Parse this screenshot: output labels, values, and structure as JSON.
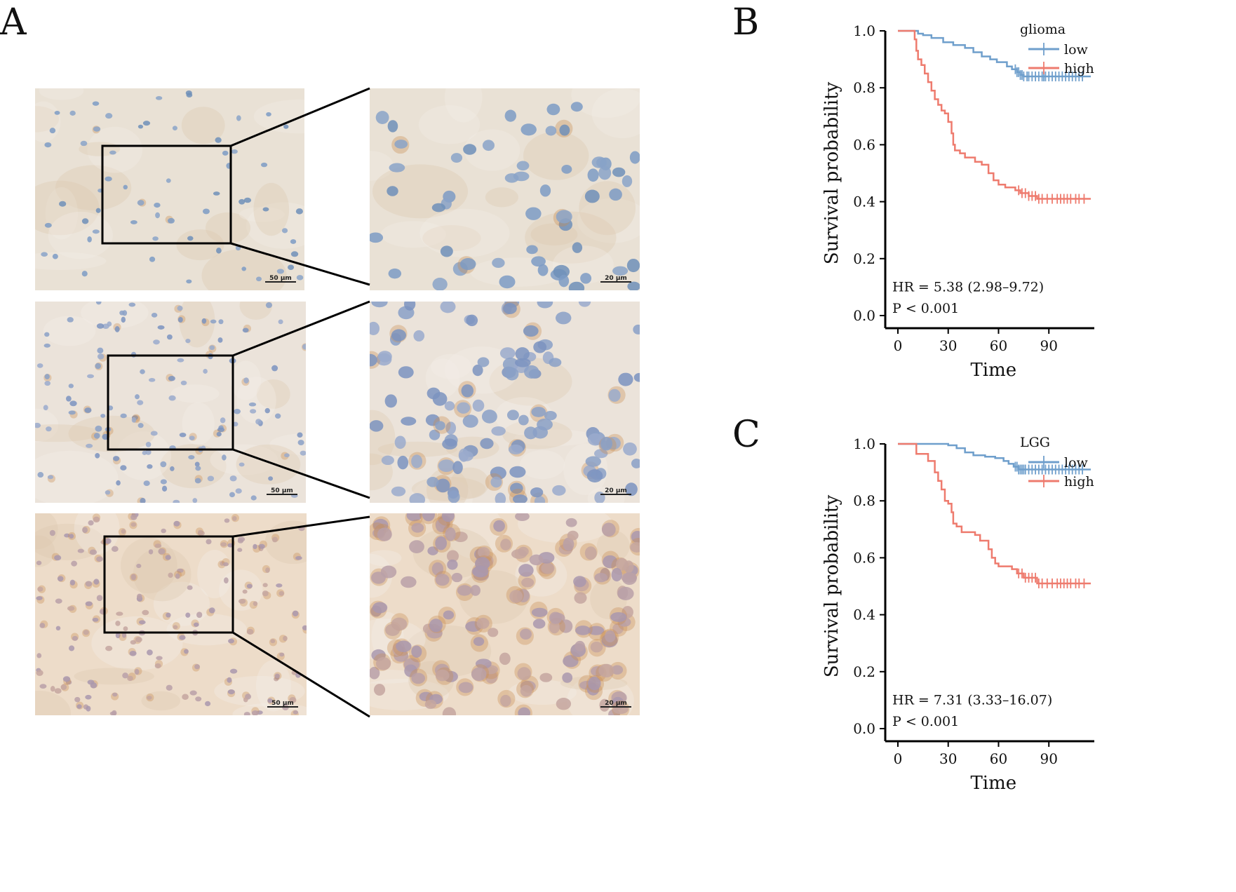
{
  "panels": {
    "a": {
      "letter": "A",
      "scale_left": "50 µm",
      "scale_right": "20 µm"
    },
    "b": {
      "letter": "B"
    },
    "c": {
      "letter": "C"
    }
  },
  "chart_data": [
    {
      "type": "line",
      "panel": "B",
      "xlabel": "Time",
      "ylabel": "Survival probability",
      "xlim": [
        0,
        115
      ],
      "ylim": [
        0,
        1.0
      ],
      "x_ticks": [
        0,
        30,
        60,
        90
      ],
      "y_ticks": [
        0.0,
        0.2,
        0.4,
        0.6,
        0.8,
        1.0
      ],
      "legend": {
        "title": "glioma",
        "position": "top-right"
      },
      "annotations": [
        "HR = 5.38 (2.98–9.72)",
        "P < 0.001"
      ],
      "series": [
        {
          "name": "low",
          "color": "#6f9fcc",
          "steps": [
            [
              0,
              1.0
            ],
            [
              12,
              0.99
            ],
            [
              15,
              0.985
            ],
            [
              20,
              0.975
            ],
            [
              27,
              0.96
            ],
            [
              33,
              0.95
            ],
            [
              40,
              0.94
            ],
            [
              45,
              0.925
            ],
            [
              50,
              0.91
            ],
            [
              55,
              0.9
            ],
            [
              59,
              0.89
            ],
            [
              65,
              0.875
            ],
            [
              68,
              0.865
            ],
            [
              71,
              0.855
            ],
            [
              73,
              0.845
            ],
            [
              75,
              0.84
            ],
            [
              115,
              0.84
            ]
          ],
          "censor_x": [
            70,
            71,
            72,
            73,
            74,
            75,
            77,
            78,
            80,
            82,
            84,
            86,
            87,
            88,
            90,
            92,
            94,
            96,
            98,
            100,
            102,
            104,
            106,
            108,
            110
          ]
        },
        {
          "name": "high",
          "color": "#ee7b6e",
          "steps": [
            [
              0,
              1.0
            ],
            [
              10,
              0.97
            ],
            [
              11,
              0.93
            ],
            [
              12,
              0.9
            ],
            [
              14,
              0.88
            ],
            [
              16,
              0.85
            ],
            [
              18,
              0.82
            ],
            [
              20,
              0.79
            ],
            [
              22,
              0.76
            ],
            [
              24,
              0.74
            ],
            [
              26,
              0.72
            ],
            [
              28,
              0.71
            ],
            [
              30,
              0.68
            ],
            [
              32,
              0.64
            ],
            [
              33,
              0.6
            ],
            [
              34,
              0.58
            ],
            [
              37,
              0.57
            ],
            [
              40,
              0.555
            ],
            [
              46,
              0.54
            ],
            [
              50,
              0.53
            ],
            [
              54,
              0.5
            ],
            [
              57,
              0.475
            ],
            [
              60,
              0.46
            ],
            [
              64,
              0.45
            ],
            [
              70,
              0.44
            ],
            [
              73,
              0.43
            ],
            [
              78,
              0.42
            ],
            [
              83,
              0.41
            ],
            [
              115,
              0.41
            ]
          ],
          "censor_x": [
            72,
            74,
            76,
            78,
            80,
            82,
            84,
            86,
            89,
            92,
            95,
            97,
            99,
            101,
            103,
            106,
            108,
            111
          ]
        }
      ]
    },
    {
      "type": "line",
      "panel": "C",
      "xlabel": "Time",
      "ylabel": "Survival probability",
      "xlim": [
        0,
        115
      ],
      "ylim": [
        0,
        1.0
      ],
      "x_ticks": [
        0,
        30,
        60,
        90
      ],
      "y_ticks": [
        0.0,
        0.2,
        0.4,
        0.6,
        0.8,
        1.0
      ],
      "legend": {
        "title": "LGG",
        "position": "top-right"
      },
      "annotations": [
        "HR = 7.31 (3.33–16.07)",
        "P < 0.001"
      ],
      "series": [
        {
          "name": "low",
          "color": "#6f9fcc",
          "steps": [
            [
              0,
              1.0
            ],
            [
              30,
              0.995
            ],
            [
              35,
              0.985
            ],
            [
              40,
              0.97
            ],
            [
              45,
              0.96
            ],
            [
              52,
              0.955
            ],
            [
              58,
              0.95
            ],
            [
              63,
              0.94
            ],
            [
              66,
              0.93
            ],
            [
              69,
              0.92
            ],
            [
              72,
              0.91
            ],
            [
              115,
              0.91
            ]
          ],
          "censor_x": [
            70,
            71,
            72,
            73,
            74,
            75,
            76,
            78,
            80,
            82,
            84,
            86,
            88,
            90,
            92,
            94,
            96,
            98,
            100,
            102,
            104,
            106,
            108,
            110
          ]
        },
        {
          "name": "high",
          "color": "#ee7b6e",
          "steps": [
            [
              0,
              1.0
            ],
            [
              11,
              0.965
            ],
            [
              18,
              0.94
            ],
            [
              22,
              0.9
            ],
            [
              24,
              0.87
            ],
            [
              26,
              0.84
            ],
            [
              28,
              0.8
            ],
            [
              30,
              0.79
            ],
            [
              32,
              0.76
            ],
            [
              33,
              0.72
            ],
            [
              35,
              0.71
            ],
            [
              38,
              0.69
            ],
            [
              46,
              0.68
            ],
            [
              49,
              0.66
            ],
            [
              54,
              0.63
            ],
            [
              56,
              0.6
            ],
            [
              58,
              0.58
            ],
            [
              60,
              0.57
            ],
            [
              68,
              0.56
            ],
            [
              71,
              0.545
            ],
            [
              75,
              0.53
            ],
            [
              83,
              0.51
            ],
            [
              115,
              0.51
            ]
          ],
          "censor_x": [
            72,
            74,
            76,
            78,
            80,
            82,
            84,
            86,
            89,
            92,
            95,
            97,
            99,
            101,
            103,
            106,
            108,
            111
          ]
        }
      ]
    }
  ]
}
